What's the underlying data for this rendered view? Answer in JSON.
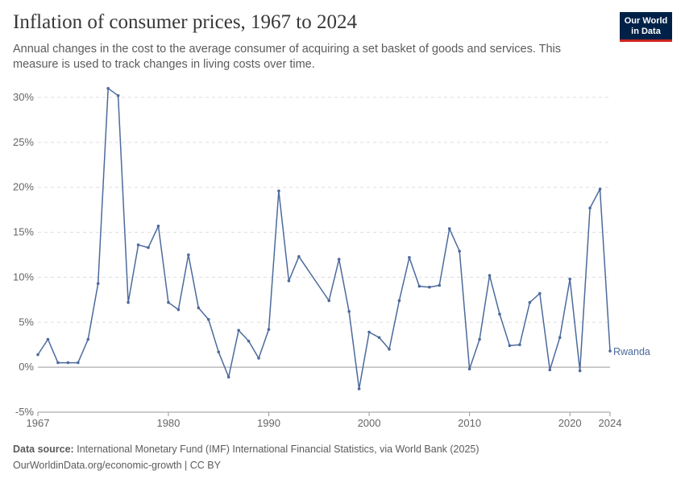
{
  "header": {
    "title": "Inflation of consumer prices, 1967 to 2024",
    "subtitle": "Annual changes in the cost to the average consumer of acquiring a set basket of goods and services. This measure is used to track changes in living costs over time."
  },
  "logo": {
    "line1": "Our World",
    "line2": "in Data",
    "bg_color": "#002147",
    "accent_color": "#ce261e"
  },
  "footer": {
    "source_label": "Data source:",
    "source_text": "International Monetary Fund (IMF) International Financial Statistics, via World Bank (2025)",
    "link_text": "OurWorldinData.org/economic-growth | CC BY"
  },
  "chart_data": {
    "type": "line",
    "title": "Inflation of consumer prices, 1967 to 2024",
    "xlabel": "",
    "ylabel": "",
    "xlim": [
      1967,
      2024
    ],
    "ylim": [
      -5,
      30
    ],
    "y_ticks": [
      -5,
      0,
      5,
      10,
      15,
      20,
      25,
      30
    ],
    "y_tick_labels": [
      "-5%",
      "0%",
      "5%",
      "10%",
      "15%",
      "20%",
      "25%",
      "30%"
    ],
    "x_ticks": [
      1967,
      1980,
      1990,
      2000,
      2010,
      2020,
      2024
    ],
    "x_tick_labels": [
      "1967",
      "1980",
      "1990",
      "2000",
      "2010",
      "2020",
      "2024"
    ],
    "grid": "horizontal dashed",
    "line_color": "#4c6a9c",
    "series": [
      {
        "name": "Rwanda",
        "x": [
          1967,
          1968,
          1969,
          1970,
          1971,
          1972,
          1973,
          1974,
          1975,
          1976,
          1977,
          1978,
          1979,
          1980,
          1981,
          1982,
          1983,
          1984,
          1985,
          1986,
          1987,
          1988,
          1989,
          1990,
          1991,
          1992,
          1993,
          1996,
          1997,
          1998,
          1999,
          2000,
          2001,
          2002,
          2003,
          2004,
          2005,
          2006,
          2007,
          2008,
          2009,
          2010,
          2011,
          2012,
          2013,
          2014,
          2015,
          2016,
          2017,
          2018,
          2019,
          2020,
          2021,
          2022,
          2023,
          2024
        ],
        "values": [
          1.4,
          3.1,
          0.5,
          0.5,
          0.5,
          3.1,
          9.3,
          31.0,
          30.2,
          7.2,
          13.6,
          13.3,
          15.7,
          7.2,
          6.4,
          12.5,
          6.6,
          5.3,
          1.7,
          -1.1,
          4.1,
          2.9,
          1.0,
          4.2,
          19.6,
          9.6,
          12.3,
          7.4,
          12.0,
          6.2,
          -2.4,
          3.9,
          3.3,
          2.0,
          7.4,
          12.2,
          9.0,
          8.9,
          9.1,
          15.4,
          12.9,
          -0.2,
          3.1,
          10.2,
          5.9,
          2.4,
          2.5,
          7.2,
          8.2,
          -0.3,
          3.3,
          9.8,
          -0.4,
          17.7,
          19.8,
          1.8
        ]
      }
    ]
  }
}
